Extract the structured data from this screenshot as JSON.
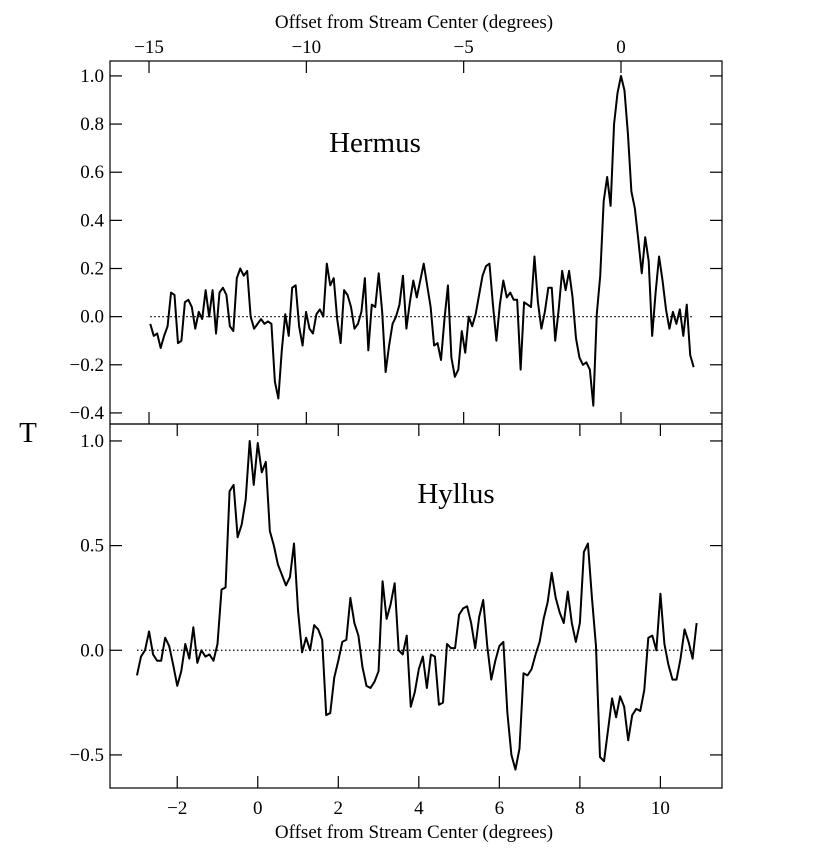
{
  "chart_data": [
    {
      "type": "line",
      "annotation": "Hermus",
      "xlabel": "Offset from Stream Center (degrees)",
      "ylabel": "T",
      "xaxis_position": "top",
      "color": "#000000",
      "hline": 0,
      "xlim": [
        -16.24,
        3.21
      ],
      "ylim": [
        -0.446,
        1.062
      ],
      "xticks": [
        {
          "value": -15,
          "label": "−15"
        },
        {
          "value": -10,
          "label": "−10"
        },
        {
          "value": -5,
          "label": "−5"
        },
        0
      ],
      "yticks": [
        {
          "value": -0.4,
          "label": "−0.4"
        },
        {
          "value": -0.2,
          "label": "−0.2"
        },
        {
          "value": 0,
          "label": "0.0"
        },
        {
          "value": 0.2,
          "label": "0.2"
        },
        {
          "value": 0.4,
          "label": "0.4"
        },
        {
          "value": 0.6,
          "label": "0.6"
        },
        {
          "value": 0.8,
          "label": "0.8"
        },
        {
          "value": 1.0,
          "label": "1.0"
        }
      ],
      "x": [
        -14.96,
        -14.85,
        -14.74,
        -14.63,
        -14.52,
        -14.41,
        -14.3,
        -14.19,
        -14.08,
        -13.97,
        -13.86,
        -13.75,
        -13.64,
        -13.53,
        -13.42,
        -13.31,
        -13.2,
        -13.09,
        -12.98,
        -12.87,
        -12.76,
        -12.65,
        -12.54,
        -12.43,
        -12.32,
        -12.21,
        -12.1,
        -11.99,
        -11.88,
        -11.77,
        -11.66,
        -11.55,
        -11.44,
        -11.33,
        -11.22,
        -11.11,
        -11.0,
        -10.89,
        -10.78,
        -10.67,
        -10.56,
        -10.45,
        -10.34,
        -10.23,
        -10.12,
        -10.01,
        -9.9,
        -9.79,
        -9.68,
        -9.57,
        -9.46,
        -9.35,
        -9.24,
        -9.13,
        -9.02,
        -8.91,
        -8.8,
        -8.69,
        -8.58,
        -8.47,
        -8.36,
        -8.25,
        -8.14,
        -8.03,
        -7.92,
        -7.81,
        -7.7,
        -7.59,
        -7.48,
        -7.37,
        -7.26,
        -7.15,
        -7.04,
        -6.93,
        -6.82,
        -6.71,
        -6.6,
        -6.49,
        -6.38,
        -6.27,
        -6.16,
        -6.05,
        -5.94,
        -5.83,
        -5.72,
        -5.61,
        -5.5,
        -5.39,
        -5.28,
        -5.17,
        -5.06,
        -4.95,
        -4.84,
        -4.73,
        -4.62,
        -4.51,
        -4.4,
        -4.29,
        -4.18,
        -4.07,
        -3.96,
        -3.85,
        -3.74,
        -3.63,
        -3.52,
        -3.41,
        -3.3,
        -3.19,
        -3.08,
        -2.97,
        -2.86,
        -2.75,
        -2.64,
        -2.53,
        -2.42,
        -2.31,
        -2.2,
        -2.09,
        -1.98,
        -1.87,
        -1.76,
        -1.65,
        -1.54,
        -1.43,
        -1.32,
        -1.21,
        -1.1,
        -0.99,
        -0.88,
        -0.77,
        -0.66,
        -0.55,
        -0.44,
        -0.33,
        -0.22,
        -0.11,
        0.0,
        0.11,
        0.22,
        0.33,
        0.44,
        0.55,
        0.66,
        0.77,
        0.88,
        0.99,
        1.1,
        1.21,
        1.32,
        1.43,
        1.54,
        1.65,
        1.76,
        1.87,
        1.98,
        2.09,
        2.2,
        2.31
      ],
      "values": [
        -0.03,
        -0.08,
        -0.07,
        -0.13,
        -0.08,
        -0.04,
        0.1,
        0.09,
        -0.11,
        -0.1,
        0.06,
        0.07,
        0.04,
        -0.05,
        0.02,
        -0.01,
        0.11,
        0.0,
        0.11,
        -0.07,
        0.1,
        0.12,
        0.09,
        -0.04,
        -0.06,
        0.16,
        0.2,
        0.17,
        0.19,
        0.0,
        -0.05,
        -0.03,
        -0.01,
        -0.03,
        -0.02,
        -0.03,
        -0.27,
        -0.34,
        -0.14,
        0.01,
        -0.08,
        0.12,
        0.13,
        -0.04,
        -0.12,
        0.02,
        -0.05,
        -0.07,
        0.01,
        0.03,
        0.0,
        0.22,
        0.13,
        0.16,
        -0.01,
        -0.11,
        0.11,
        0.09,
        0.04,
        -0.05,
        -0.03,
        0.02,
        0.16,
        -0.14,
        0.05,
        0.04,
        0.18,
        0.02,
        -0.23,
        -0.12,
        -0.03,
        0.0,
        0.05,
        0.17,
        -0.05,
        0.06,
        0.15,
        0.08,
        0.15,
        0.22,
        0.13,
        0.04,
        -0.12,
        -0.11,
        -0.18,
        -0.01,
        0.13,
        -0.17,
        -0.25,
        -0.22,
        -0.06,
        -0.15,
        0.0,
        -0.04,
        0.01,
        0.09,
        0.17,
        0.21,
        0.22,
        0.05,
        -0.1,
        0.05,
        0.15,
        0.08,
        0.1,
        0.07,
        0.07,
        -0.22,
        0.06,
        0.05,
        0.04,
        0.25,
        0.06,
        -0.05,
        0.02,
        0.12,
        0.12,
        -0.1,
        0.03,
        0.19,
        0.11,
        0.19,
        0.08,
        -0.09,
        -0.17,
        -0.2,
        -0.19,
        -0.22,
        -0.37,
        0.01,
        0.17,
        0.48,
        0.58,
        0.46,
        0.8,
        0.93,
        1.0,
        0.94,
        0.76,
        0.52,
        0.45,
        0.32,
        0.18,
        0.33,
        0.23,
        -0.08,
        0.1,
        0.25,
        0.15,
        0.03,
        -0.05,
        0.02,
        -0.03,
        0.03,
        -0.08,
        0.05,
        -0.16,
        -0.21
      ]
    },
    {
      "type": "line",
      "annotation": "Hyllus",
      "xlabel": "Offset from Stream Center (degrees)",
      "xaxis_position": "bottom",
      "color": "#000000",
      "hline": 0,
      "xlim": [
        -3.67,
        11.53
      ],
      "ylim": [
        -0.658,
        1.081
      ],
      "xticks": [
        {
          "value": -2,
          "label": "−2"
        },
        0,
        2,
        4,
        6,
        8,
        10
      ],
      "yticks": [
        {
          "value": -0.5,
          "label": "−0.5"
        },
        {
          "value": 0,
          "label": "0.0"
        },
        {
          "value": 0.5,
          "label": "0.5"
        },
        {
          "value": 1.0,
          "label": "1.0"
        }
      ],
      "x": [
        -3.0,
        -2.9,
        -2.8,
        -2.7,
        -2.6,
        -2.5,
        -2.4,
        -2.3,
        -2.2,
        -2.1,
        -2.0,
        -1.9,
        -1.8,
        -1.7,
        -1.6,
        -1.5,
        -1.4,
        -1.3,
        -1.2,
        -1.1,
        -1.0,
        -0.9,
        -0.8,
        -0.7,
        -0.6,
        -0.5,
        -0.4,
        -0.3,
        -0.2,
        -0.1,
        0.0,
        0.1,
        0.2,
        0.3,
        0.4,
        0.5,
        0.6,
        0.7,
        0.8,
        0.9,
        1.0,
        1.1,
        1.2,
        1.3,
        1.4,
        1.5,
        1.6,
        1.7,
        1.8,
        1.9,
        2.0,
        2.1,
        2.2,
        2.3,
        2.4,
        2.5,
        2.6,
        2.7,
        2.8,
        2.9,
        3.0,
        3.1,
        3.2,
        3.3,
        3.4,
        3.5,
        3.6,
        3.7,
        3.8,
        3.9,
        4.0,
        4.1,
        4.2,
        4.3,
        4.4,
        4.5,
        4.6,
        4.7,
        4.8,
        4.9,
        5.0,
        5.1,
        5.2,
        5.3,
        5.4,
        5.5,
        5.6,
        5.7,
        5.8,
        5.9,
        6.0,
        6.1,
        6.2,
        6.3,
        6.4,
        6.5,
        6.6,
        6.7,
        6.8,
        6.9,
        7.0,
        7.1,
        7.2,
        7.3,
        7.4,
        7.5,
        7.6,
        7.7,
        7.8,
        7.9,
        8.0,
        8.1,
        8.2,
        8.3,
        8.4,
        8.5,
        8.6,
        8.7,
        8.8,
        8.9,
        9.0,
        9.1,
        9.2,
        9.3,
        9.4,
        9.5,
        9.6,
        9.7,
        9.8,
        9.9,
        10.0,
        10.1,
        10.2,
        10.3,
        10.4,
        10.5,
        10.6,
        10.7,
        10.8,
        10.9
      ],
      "values": [
        -0.12,
        -0.03,
        0.0,
        0.09,
        -0.02,
        -0.05,
        -0.05,
        0.06,
        0.02,
        -0.07,
        -0.17,
        -0.1,
        0.03,
        -0.04,
        0.11,
        -0.06,
        0.0,
        -0.03,
        -0.02,
        -0.05,
        0.03,
        0.29,
        0.3,
        0.76,
        0.79,
        0.54,
        0.6,
        0.72,
        1.0,
        0.79,
        0.99,
        0.85,
        0.9,
        0.57,
        0.5,
        0.41,
        0.36,
        0.31,
        0.35,
        0.51,
        0.19,
        -0.01,
        0.06,
        0.0,
        0.12,
        0.1,
        0.05,
        -0.31,
        -0.3,
        -0.13,
        -0.05,
        0.04,
        0.05,
        0.25,
        0.13,
        0.07,
        -0.08,
        -0.17,
        -0.18,
        -0.15,
        -0.1,
        0.33,
        0.15,
        0.22,
        0.32,
        0.0,
        -0.02,
        0.07,
        -0.27,
        -0.2,
        -0.09,
        -0.03,
        -0.18,
        -0.02,
        -0.03,
        -0.26,
        -0.25,
        0.03,
        0.01,
        0.01,
        0.17,
        0.2,
        0.21,
        0.13,
        0.01,
        0.16,
        0.24,
        0.02,
        -0.14,
        -0.05,
        0.02,
        0.04,
        -0.3,
        -0.5,
        -0.57,
        -0.47,
        -0.11,
        -0.12,
        -0.09,
        -0.02,
        0.04,
        0.15,
        0.23,
        0.37,
        0.25,
        0.18,
        0.13,
        0.28,
        0.13,
        0.04,
        0.13,
        0.47,
        0.51,
        0.25,
        0.02,
        -0.51,
        -0.53,
        -0.38,
        -0.23,
        -0.32,
        -0.22,
        -0.27,
        -0.43,
        -0.31,
        -0.28,
        -0.29,
        -0.19,
        0.06,
        0.07,
        0.0,
        0.27,
        0.03,
        -0.07,
        -0.14,
        -0.14,
        -0.04,
        0.1,
        0.04,
        -0.04,
        0.13
      ]
    }
  ]
}
